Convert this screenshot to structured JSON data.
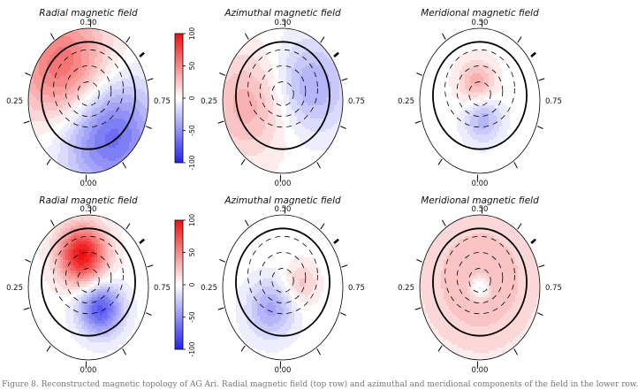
{
  "chart_data": {
    "type": "heatmap",
    "colorscale": {
      "min": -100,
      "max": 100,
      "negative_color": "#2222ee",
      "zero_color": "#ffffff",
      "positive_color": "#ee1111"
    },
    "colorbar_ticks": [
      100,
      50,
      0,
      -50,
      -100
    ],
    "phase_labels": {
      "top": "0.50",
      "bottom": "0.00",
      "left": "0.25",
      "right": "0.75"
    },
    "panels": [
      {
        "id": "r1c1",
        "title": "Radial magnetic field",
        "field": [
          {
            "u": -0.4,
            "v": -0.45,
            "s": 0.55,
            "a": 65
          },
          {
            "u": 0.35,
            "v": 0.45,
            "s": 0.55,
            "a": -70
          }
        ]
      },
      {
        "id": "r1c2",
        "title": "Azimuthal magnetic field",
        "field": [
          {
            "u": -0.55,
            "v": 0.05,
            "s": 0.5,
            "a": 35
          },
          {
            "u": 0.45,
            "v": -0.2,
            "s": 0.45,
            "a": -40
          }
        ]
      },
      {
        "id": "r1c3",
        "title": "Meridional magnetic field",
        "field": [
          {
            "u": -0.05,
            "v": -0.25,
            "s": 0.22,
            "a": 35
          },
          {
            "u": 0.05,
            "v": 0.25,
            "s": 0.22,
            "a": -35
          }
        ]
      },
      {
        "id": "r2c1",
        "title": "Radial magnetic field",
        "field": [
          {
            "u": -0.1,
            "v": -0.45,
            "s": 0.28,
            "a": 100
          },
          {
            "u": 0.2,
            "v": 0.3,
            "s": 0.25,
            "a": -75
          }
        ]
      },
      {
        "id": "r2c2",
        "title": "Azimuthal magnetic field",
        "field": [
          {
            "u": -0.2,
            "v": 0.3,
            "s": 0.28,
            "a": -40
          },
          {
            "u": 0.3,
            "v": -0.05,
            "s": 0.2,
            "a": 25
          }
        ]
      },
      {
        "id": "r2c3",
        "title": "Meridional magnetic field",
        "field": [
          {
            "u": 0.0,
            "v": -0.1,
            "s": 0.75,
            "a": 30
          },
          {
            "u": 0.0,
            "v": 0.0,
            "s": 0.12,
            "a": -35
          }
        ]
      }
    ]
  },
  "caption": "Figure 8. Reconstructed magnetic topology of AG Ari. Radial magnetic field (top row) and azimuthal and meridional components of the field in the lower row."
}
